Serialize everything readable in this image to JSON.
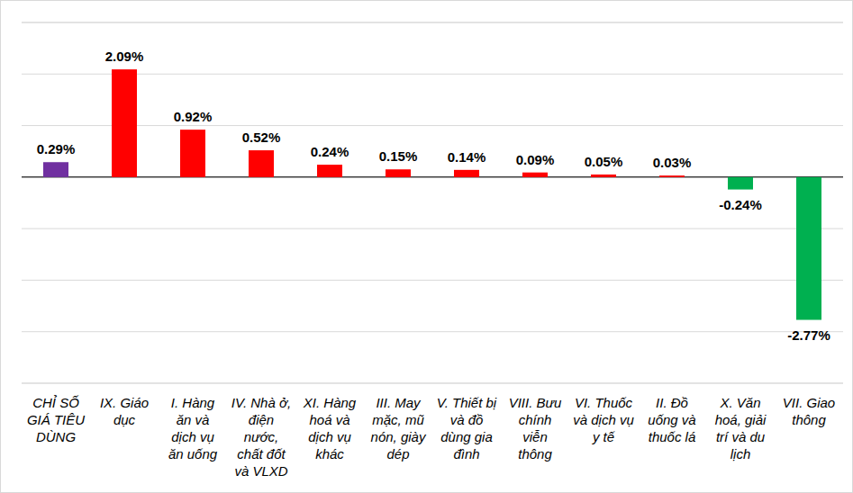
{
  "chart_data": {
    "type": "bar",
    "categories": [
      "CHỈ SỐ GIÁ TIÊU DÙNG",
      "IX. Giáo dục",
      "I. Hàng ăn và dịch vụ ăn uống",
      "IV. Nhà ở, điện nước, chất đốt và VLXD",
      "XI. Hàng hoá và dịch vụ khác",
      "III. May mặc, mũ nón, giày dép",
      "V. Thiết bị và đồ dùng gia đình",
      "VIII. Bưu chính viễn thông",
      "VI. Thuốc và dịch vụ y tế",
      "II. Đồ uống và thuốc lá",
      "X. Văn hoá, giải trí và du lịch",
      "VII. Giao thông"
    ],
    "values": [
      0.29,
      2.09,
      0.92,
      0.52,
      0.24,
      0.15,
      0.14,
      0.09,
      0.05,
      0.03,
      -0.24,
      -2.77
    ],
    "value_labels": [
      "0.29%",
      "2.09%",
      "0.92%",
      "0.52%",
      "0.24%",
      "0.15%",
      "0.14%",
      "0.09%",
      "0.05%",
      "0.03%",
      "-0.24%",
      "-2.77%"
    ],
    "colors": [
      "#7030a0",
      "#ff0000",
      "#ff0000",
      "#ff0000",
      "#ff0000",
      "#ff0000",
      "#ff0000",
      "#ff0000",
      "#ff0000",
      "#ff0000",
      "#00b050",
      "#00b050"
    ],
    "ylim": [
      -4,
      3
    ],
    "yticks": [
      -4,
      -3,
      -2,
      -1,
      0,
      1,
      2,
      3
    ],
    "grid": true,
    "data_labels": true,
    "tick_labels": "x"
  }
}
